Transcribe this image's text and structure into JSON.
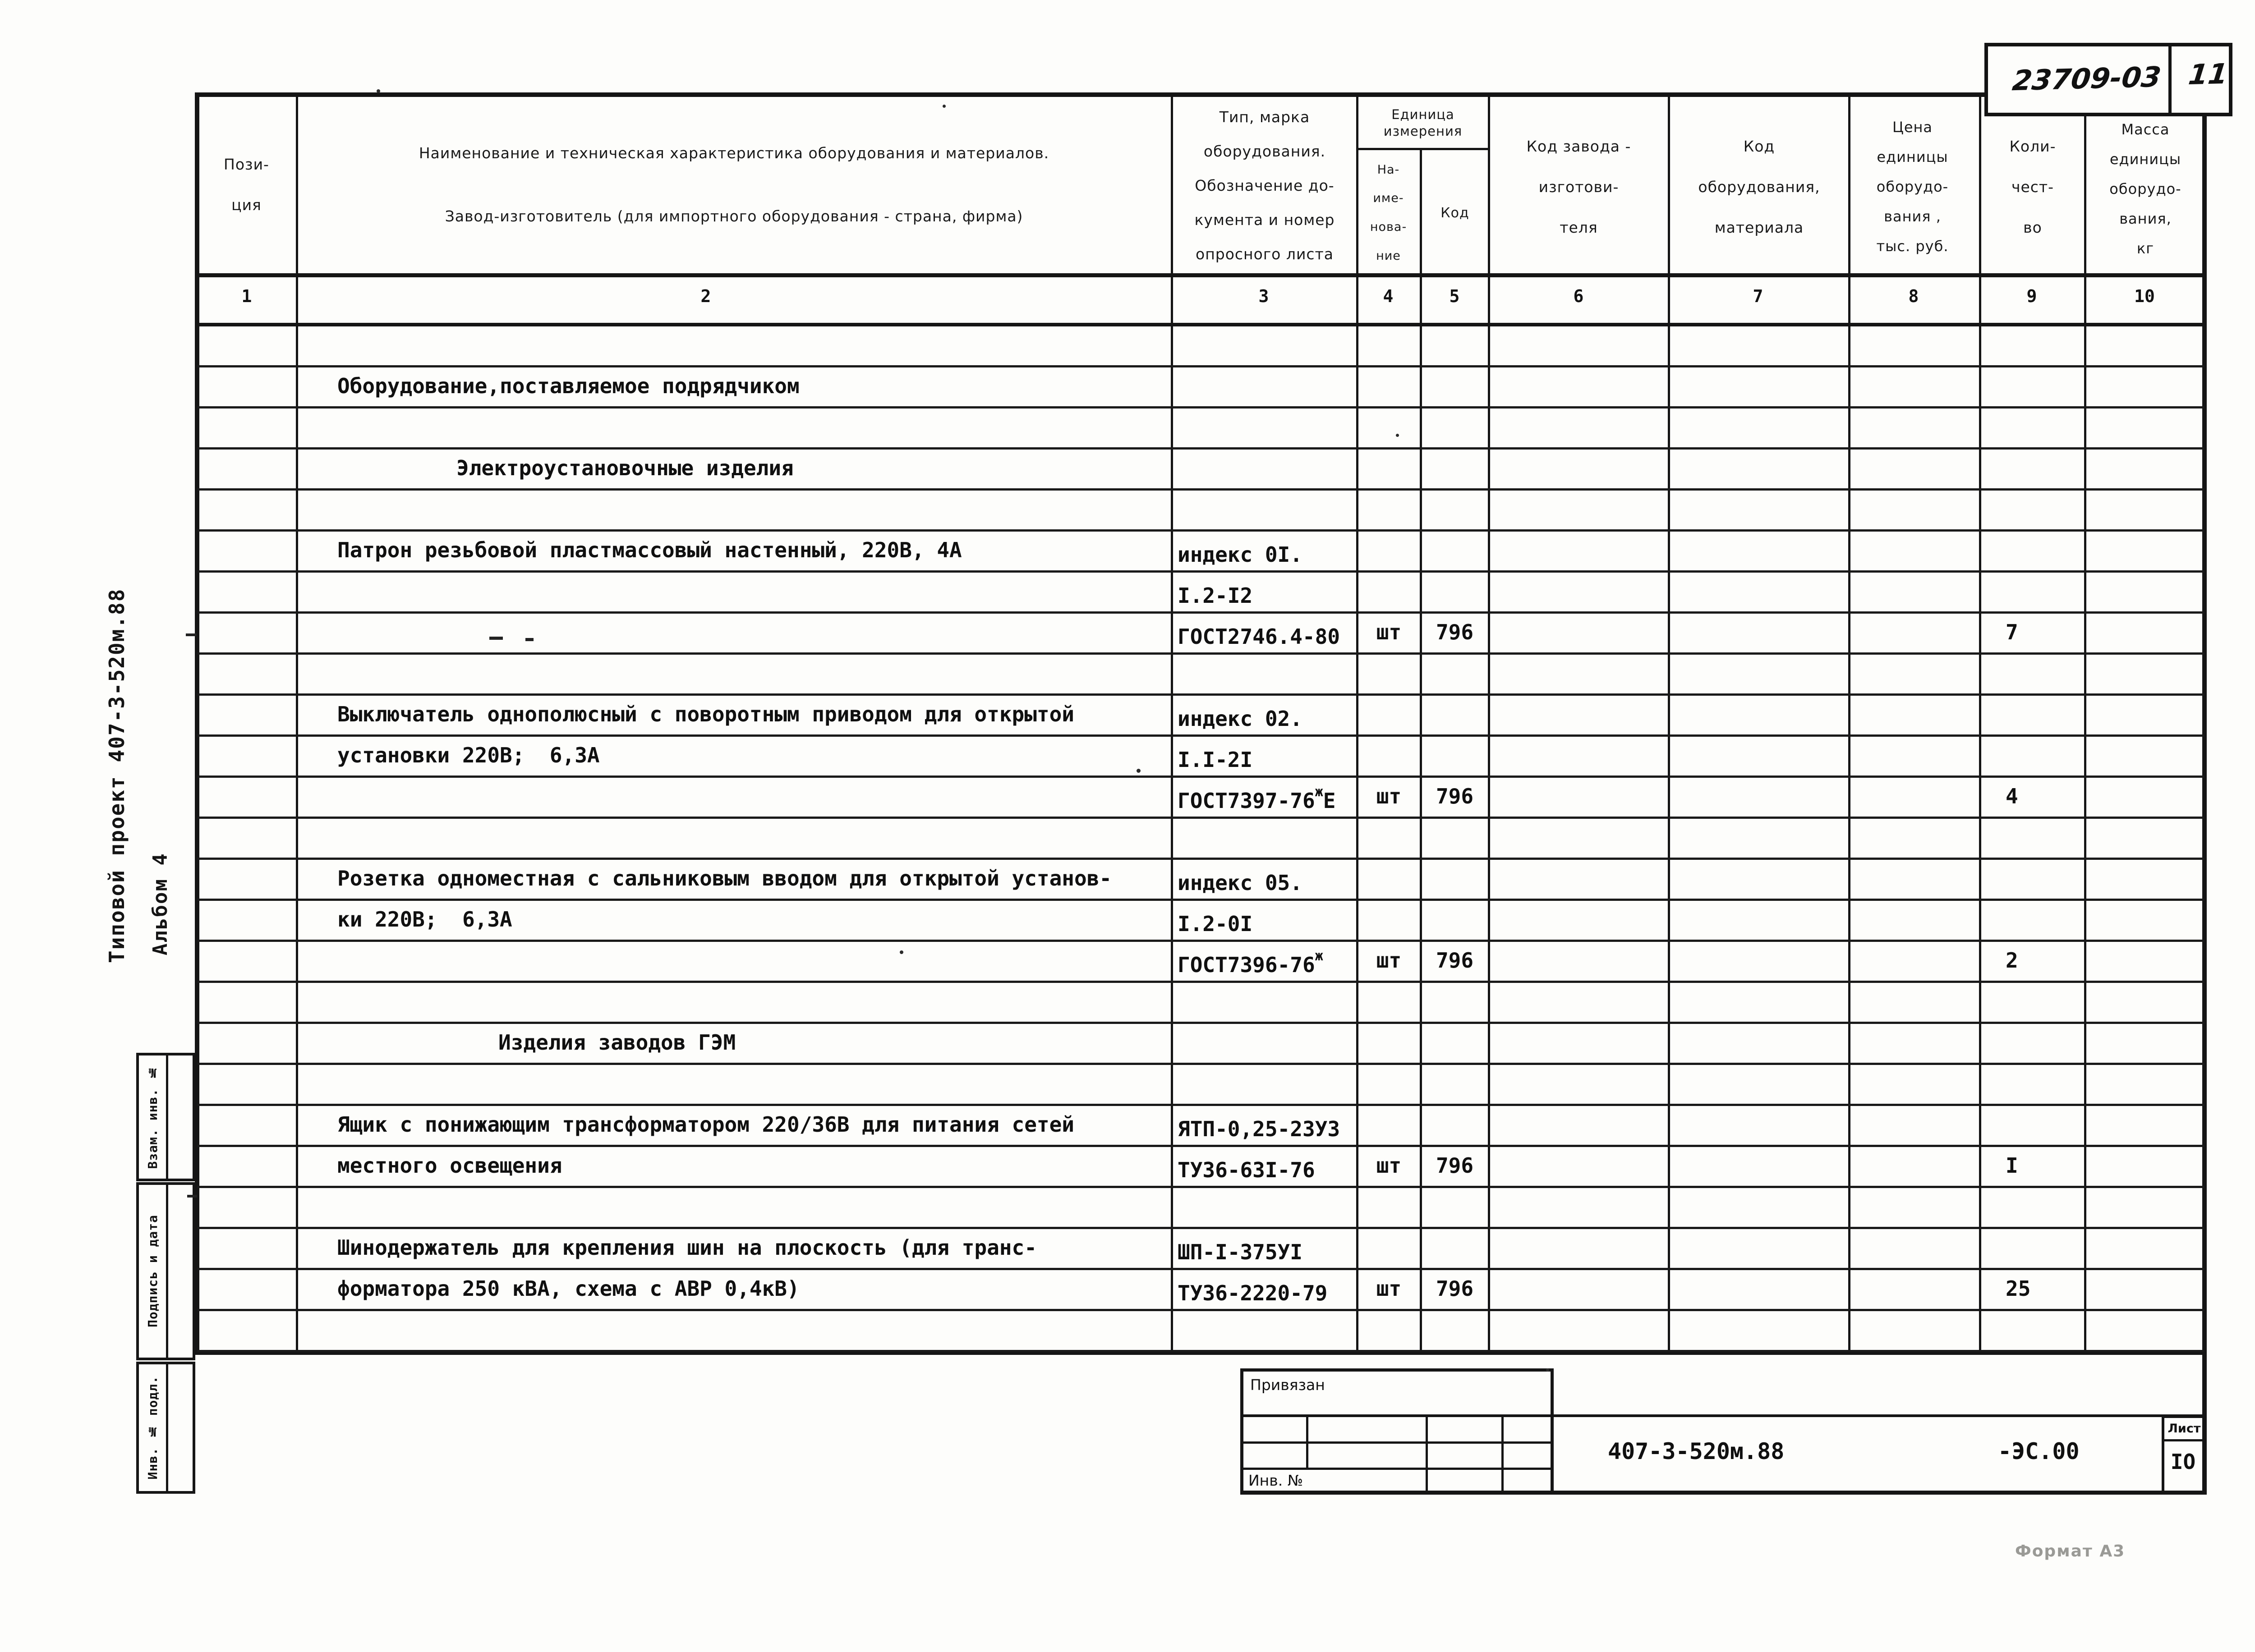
{
  "page": {
    "handwritten_number": "23709-03",
    "handwritten_page": "11",
    "side_vertical_title": "Типовой проект 407-3-520м.88",
    "side_vertical_subtitle": "Альбом 4",
    "format_note": "Формат А3"
  },
  "side_stamps": {
    "vzam_inv": "Взам. инв. №",
    "podpis_data": "Подпись и дата",
    "inv_podl": "Инв. № подл."
  },
  "table": {
    "header": {
      "c1": [
        "Пози-",
        "ция"
      ],
      "c2": [
        "Наименование и техническая характеристика  оборудования и материалов.",
        "Завод-изготовитель  (для импортного оборудования -  страна, фирма)"
      ],
      "c3": [
        "Тип,    марка",
        "оборудования.",
        "Обозначение  до-",
        "кумента  и  номер",
        "опросного  листа"
      ],
      "unit_group": [
        "Единица",
        "измерения"
      ],
      "c4": [
        "На-",
        "име-",
        "нова-",
        "ние"
      ],
      "c5": "Код",
      "c6": [
        "Код  завода -",
        "изготови-",
        "теля"
      ],
      "c7": [
        "Код",
        "оборудования,",
        "материала"
      ],
      "c8": [
        "Цена",
        "единицы",
        "оборудо-",
        "вания ,",
        "тыс. руб."
      ],
      "c9": [
        "Коли-",
        "чест-",
        "во"
      ],
      "c10": [
        "Масса",
        "единицы",
        "оборудо-",
        "вания,",
        "кг"
      ],
      "numbers": [
        "1",
        "2",
        "3",
        "4",
        "5",
        "6",
        "7",
        "8",
        "9",
        "10"
      ]
    },
    "rows": [
      {},
      {
        "c2": "Оборудование,поставляемое подрядчиком"
      },
      {},
      {
        "c2": "Электроустановочные изделия",
        "indent": 1
      },
      {},
      {
        "c2": "Патрон резьбовой пластмассовый настенный, 220В, 4А",
        "c3": "индекс 0I."
      },
      {
        "c3": "I.2-I2"
      },
      {
        "c3": "ГОСТ2746.4-80",
        "c4": "шт",
        "c5": "796",
        "c9": "7"
      },
      {},
      {
        "c2": "Выключатель однополюсный с поворотным приводом для открытой",
        "c3": "индекс 02."
      },
      {
        "c2": "установки 220В;  6,3А",
        "c3": "I.I-2I"
      },
      {
        "c3": "ГОСТ7397-76",
        "c3sup": "ж",
        "c3tail": "Е",
        "c4": "шт",
        "c5": "796",
        "c9": "4"
      },
      {},
      {
        "c2": "Розетка одноместная с сальниковым вводом для открытой установ-",
        "c3": "индекс 05."
      },
      {
        "c2": "ки 220В;  6,3А",
        "c3": "I.2-0I"
      },
      {
        "c3": "ГОСТ7396-76",
        "c3sup": "ж",
        "c4": "шт",
        "c5": "796",
        "c9": "2"
      },
      {},
      {
        "c2": "Изделия заводов ГЭМ",
        "indent": 2
      },
      {},
      {
        "c2": "Ящик с понижающим трансформатором 220/36В для питания сетей",
        "c3": "ЯТП-0,25-23У3"
      },
      {
        "c2": "местного освещения",
        "c3": "ТУ36-63I-76",
        "c4": "шт",
        "c5": "796",
        "c9": "I"
      },
      {},
      {
        "c2": "Шинодержатель для крепления шин на плоскость (для транс-",
        "c3": "ШП-I-375УI"
      },
      {
        "c2": "форматора 250 кВА, схема с АВР 0,4кВ)",
        "c3": "ТУ36-2220-79",
        "c4": "шт",
        "c5": "796",
        "c9": "25"
      },
      {}
    ]
  },
  "title_block": {
    "privyazan": "Привязан",
    "inv_no": "Инв. №",
    "doc_number": "407-3-520м.88",
    "doc_suffix": "-ЭС.00",
    "sheet_label": "Лист",
    "sheet_number": "IО"
  }
}
